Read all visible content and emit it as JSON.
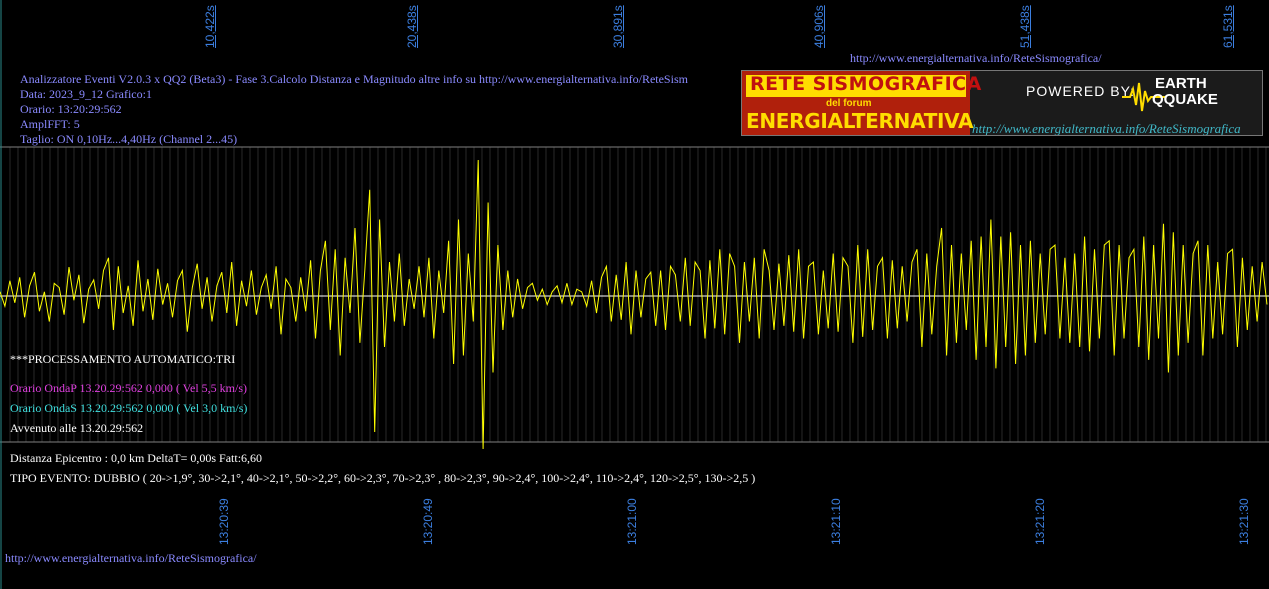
{
  "header": {
    "url_top": "http://www.energialternativa.info/ReteSismografica/",
    "url_bottom": "http://www.energialternativa.info/ReteSismografica/",
    "info_lines": [
      "Analizzatore Eventi V2.0.3 x QQ2 (Beta3) - Fase 3.Calcolo Distanza e Magnitudo altre info su http://www.energialternativa.info/ReteSism",
      "Data: 2023_9_12 Grafico:1",
      "Orario: 13:20:29:562",
      "AmplFFT: 5",
      "Taglio: ON 0,10Hz...4,40Hz       (Channel 2...45)"
    ]
  },
  "logo": {
    "line1": "RETE SISMOGRAFICA",
    "line2": "del forum",
    "line3": "ENERGIALTERNATIVA",
    "powered": "POWERED BY:",
    "brand1": "EARTH",
    "brand2": "QQUAKE",
    "url": "http://www.energialternativa.info/ReteSismografica"
  },
  "processing": {
    "title": "***PROCESSAMENTO AUTOMATICO:TRI",
    "p_wave": "Orario OndaP 13.20.29:562  0,000 ( Vel 5,5 km/s)",
    "s_wave": "Orario OndaS 13.20.29:562  0,000 ( Vel 3,0 km/s)",
    "occurred": "Avvenuto alle 13.20.29:562",
    "distance": "Distanza Epicentro : 0,0 km DeltaT= 0,00s  Fatt:6,60",
    "event_type": "TIPO EVENTO: DUBBIO ( 20->1,9°, 30->2,1°, 40->2,1°, 50->2,2°, 60->2,3°, 70->2,3° , 80->2,3°, 90->2,4°, 100->2,4°, 110->2,4°, 120->2,5°, 130->2,5 )"
  },
  "colors": {
    "background": "#000000",
    "trace": "#ffff00",
    "grid": "#808080",
    "baseline": "#ffffff",
    "tick_labels": "#3c7fe0",
    "info_text": "#8a8aff",
    "p_wave": "#e040e0",
    "s_wave": "#40e0e0"
  },
  "chart_data": {
    "type": "line",
    "series": [
      {
        "name": "",
        "values": [
          0.05,
          -0.12,
          0.18,
          -0.08,
          0.22,
          -0.25,
          0.12,
          0.28,
          -0.18,
          0.05,
          -0.3,
          0.15,
          0.1,
          -0.22,
          0.34,
          -0.05,
          0.25,
          -0.32,
          0.08,
          0.19,
          -0.15,
          0.3,
          0.45,
          -0.4,
          0.35,
          -0.2,
          0.12,
          -0.35,
          0.42,
          -0.18,
          0.2,
          -0.28,
          0.32,
          -0.1,
          0.15,
          -0.25,
          0.18,
          0.3,
          -0.42,
          0.1,
          0.38,
          -0.15,
          0.22,
          -0.3,
          0.12,
          0.28,
          -0.2,
          0.4,
          -0.35,
          0.18,
          -0.12,
          0.3,
          -0.22,
          0.1,
          0.25,
          -0.15,
          0.35,
          -0.45,
          0.2,
          0.1,
          -0.3,
          0.22,
          -0.18,
          0.42,
          -0.5,
          0.3,
          0.65,
          -0.4,
          0.55,
          -0.7,
          0.45,
          -0.2,
          0.8,
          -0.55,
          0.3,
          1.25,
          -1.6,
          0.9,
          -0.6,
          0.4,
          -0.3,
          0.5,
          -0.35,
          0.2,
          -0.15,
          0.35,
          -0.25,
          0.45,
          -0.5,
          0.3,
          -0.2,
          0.65,
          -0.8,
          0.9,
          -0.7,
          0.5,
          -0.3,
          1.6,
          -1.8,
          1.1,
          -0.9,
          0.6,
          -0.4,
          0.3,
          -0.25,
          0.2,
          -0.15,
          0.1,
          0.15,
          -0.05,
          0.08,
          -0.1,
          0.05,
          0.12,
          -0.08,
          0.15,
          -0.1,
          0.08,
          0.05,
          -0.12,
          0.18,
          -0.2,
          0.22,
          0.35,
          -0.3,
          0.25,
          -0.28,
          0.4,
          -0.45,
          0.3,
          -0.25,
          0.2,
          0.28,
          -0.35,
          0.3,
          -0.4,
          0.35,
          0.25,
          -0.3,
          0.45,
          -0.35,
          0.4,
          0.3,
          -0.5,
          0.42,
          -0.38,
          0.55,
          -0.45,
          0.5,
          0.35,
          -0.55,
          0.4,
          -0.3,
          0.45,
          -0.5,
          0.55,
          0.3,
          -0.4,
          0.38,
          -0.35,
          0.48,
          -0.42,
          0.55,
          -0.5,
          0.35,
          0.4,
          -0.45,
          0.3,
          -0.38,
          0.5,
          -0.42,
          0.45,
          0.35,
          -0.55,
          0.6,
          -0.48,
          0.55,
          -0.4,
          0.35,
          0.45,
          -0.5,
          0.42,
          -0.38,
          0.35,
          -0.3,
          0.4,
          0.55,
          -0.6,
          0.5,
          -0.45,
          0.35,
          0.8,
          -0.7,
          0.6,
          -0.55,
          0.5,
          -0.4,
          0.65,
          -0.75,
          0.7,
          -0.6,
          0.9,
          -0.85,
          0.7,
          -0.6,
          0.75,
          -0.8,
          0.6,
          -0.7,
          0.65,
          -0.55,
          0.5,
          -0.45,
          0.55,
          0.6,
          -0.5,
          0.45,
          -0.55,
          0.5,
          -0.6,
          0.7,
          -0.65,
          0.55,
          -0.5,
          0.6,
          0.65,
          -0.7,
          0.6,
          -0.5,
          0.45,
          0.55,
          -0.6,
          0.7,
          -0.75,
          0.6,
          -0.5,
          0.85,
          -0.9,
          0.75,
          -0.7,
          0.6,
          -0.55,
          0.5,
          0.65,
          -0.7,
          0.6,
          -0.5,
          0.4,
          -0.45,
          0.5,
          0.55,
          -0.6,
          0.45,
          -0.4,
          0.35,
          -0.3,
          0.4,
          -0.1
        ]
      }
    ],
    "xlabel": "",
    "ylabel": "",
    "top_ticks": [
      "10,422s",
      "20,438s",
      "30,891s",
      "40,906s",
      "51,438s",
      "61,531s"
    ],
    "bottom_ticks": [
      "13:20:39",
      "13:20:49",
      "13:21:00",
      "13:21:10",
      "13:21:20",
      "13:21:30"
    ],
    "grid": true
  }
}
